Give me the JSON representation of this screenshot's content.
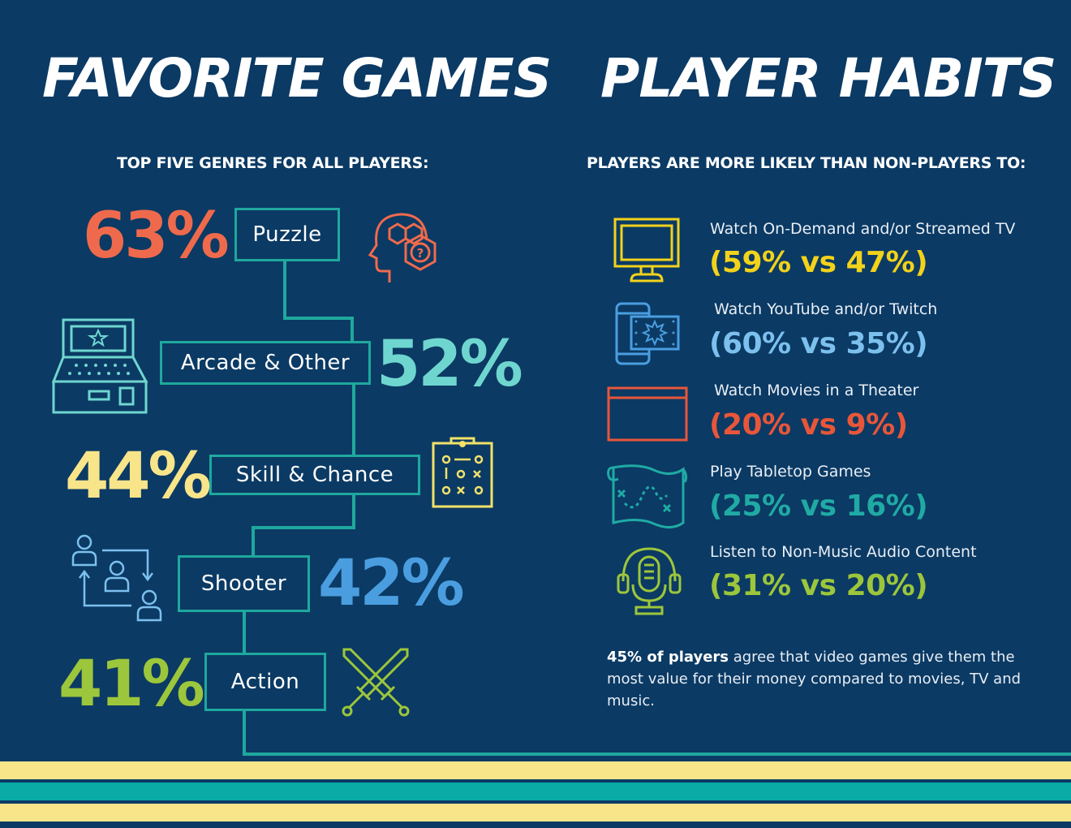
{
  "left": {
    "title": "FAVORITE GAMES",
    "subtitle": "TOP FIVE GENRES FOR ALL PLAYERS:",
    "genres": [
      {
        "label": "Puzzle",
        "percent": "63%",
        "color": "#ef6a4c",
        "icon": "puzzle-head-icon"
      },
      {
        "label": "Arcade & Other",
        "percent": "52%",
        "color": "#6fd6cf",
        "icon": "arcade-machine-icon"
      },
      {
        "label": "Skill & Chance",
        "percent": "44%",
        "color": "#f8e58a",
        "icon": "game-board-icon"
      },
      {
        "label": "Shooter",
        "percent": "42%",
        "color": "#4a9ee0",
        "icon": "players-arrows-icon"
      },
      {
        "label": "Action",
        "percent": "41%",
        "color": "#9cc63b",
        "icon": "crossed-swords-icon"
      }
    ]
  },
  "right": {
    "title": "PLAYER HABITS",
    "subtitle": "PLAYERS ARE MORE LIKELY THAN NON-PLAYERS TO:",
    "habits": [
      {
        "label": "Watch On-Demand and/or Streamed TV",
        "value": "(59% vs 47%)",
        "color": "#f2d21b",
        "icon": "tv-monitor-icon"
      },
      {
        "label": "Watch YouTube and/or Twitch",
        "value": "(60% vs 35%)",
        "color": "#7cc0ee",
        "icon": "phone-video-icon"
      },
      {
        "label": "Watch Movies in a Theater",
        "value": "(20% vs 9%)",
        "color": "#e8563a",
        "icon": "movie-screen-icon"
      },
      {
        "label": "Play Tabletop Games",
        "value": "(25% vs 16%)",
        "color": "#20aaa4",
        "icon": "treasure-map-icon"
      },
      {
        "label": "Listen to Non-Music Audio Content",
        "value": "(31% vs 20%)",
        "color": "#9cc63b",
        "icon": "podcast-mic-icon"
      }
    ],
    "note_bold": "45% of players",
    "note_rest": " agree that video games give them the most value for their money compared to movies, TV and music."
  },
  "colors": {
    "background": "#0b3a64",
    "connector": "#1fa89e",
    "stripe_yellow": "#f8e58a",
    "stripe_teal": "#0aaba6"
  }
}
